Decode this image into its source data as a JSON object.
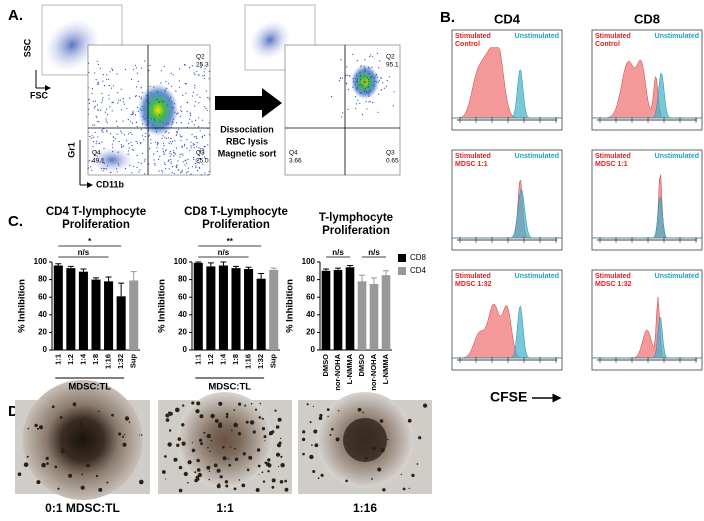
{
  "panel_a": {
    "letter": "A.",
    "axis_labels": {
      "ssc": "SSC",
      "fsc": "FSC",
      "gr1": "Gr1",
      "cd11b": "CD11b"
    },
    "plots": [
      {
        "gates": [
          {
            "name": "Q2",
            "value": "25.3"
          },
          {
            "name": "Q4",
            "value": "49.1"
          },
          {
            "name": "Q3",
            "value": "25.0"
          }
        ]
      },
      {
        "gates": [
          {
            "name": "Q2",
            "value": "95.1"
          },
          {
            "name": "Q4",
            "value": "3.66"
          },
          {
            "name": "Q3",
            "value": "0.65"
          }
        ]
      }
    ],
    "arrow_label": [
      "Dissociation",
      "RBC lysis",
      "Magnetic sort"
    ]
  },
  "panel_b": {
    "letter": "B.",
    "columns": [
      "CD4",
      "CD8"
    ],
    "rows": [
      {
        "stim": [
          "Stimulated",
          "Control"
        ]
      },
      {
        "stim": [
          "Stimulated",
          "MDSC 1:1"
        ]
      },
      {
        "stim": [
          "Stimulated",
          "MDSC 1:32"
        ]
      }
    ],
    "unstim": "Unstimulated",
    "x_label": "CFSE"
  },
  "panel_c_letter": "C.",
  "chart_data": [
    {
      "type": "bar",
      "title": "CD4 T-lymphocyte Proliferation",
      "ylabel": "% Inhibition",
      "xlabel": "MDSC:TL",
      "categories": [
        "1:1",
        "1:2",
        "1:4",
        "1:8",
        "1:16",
        "1:32",
        "Sup"
      ],
      "values": [
        96,
        93,
        89,
        80,
        78,
        61,
        79
      ],
      "errors": [
        2,
        2,
        3,
        2,
        5,
        15,
        10
      ],
      "colors": [
        "#000000",
        "#000000",
        "#000000",
        "#000000",
        "#000000",
        "#000000",
        "#999999"
      ],
      "ylim": [
        0,
        100
      ],
      "yticks": [
        0,
        20,
        40,
        60,
        80,
        100
      ],
      "annotations": [
        {
          "text": "*",
          "from": "1:1",
          "to": "1:32"
        },
        {
          "text": "n/s",
          "from": "1:1",
          "to": "1:16"
        }
      ]
    },
    {
      "type": "bar",
      "title": "CD8 T-Lymphocyte Proliferation",
      "ylabel": "% Inhibition",
      "xlabel": "MDSC:TL",
      "categories": [
        "1:1",
        "1:2",
        "1:4",
        "1:8",
        "1:16",
        "1:32",
        "Sup"
      ],
      "values": [
        99,
        95,
        96,
        93,
        92,
        81,
        91
      ],
      "errors": [
        1,
        4,
        4,
        2,
        2,
        6,
        2
      ],
      "colors": [
        "#000000",
        "#000000",
        "#000000",
        "#000000",
        "#000000",
        "#000000",
        "#999999"
      ],
      "ylim": [
        0,
        100
      ],
      "yticks": [
        0,
        20,
        40,
        60,
        80,
        100
      ],
      "annotations": [
        {
          "text": "**",
          "from": "1:1",
          "to": "1:32"
        },
        {
          "text": "n/s",
          "from": "1:1",
          "to": "1:16"
        }
      ]
    },
    {
      "type": "grouped-bar",
      "title": "T-lymphocyte Proliferation",
      "ylabel": "% Inhibition",
      "categories": [
        "DMSO",
        "nor-NOHA",
        "L-NMMA",
        "DMSO",
        "nor-NOHA",
        "L-NMMA"
      ],
      "series": [
        {
          "name": "CD8",
          "color": "#000000",
          "values": [
            90,
            91,
            94,
            null,
            null,
            null
          ],
          "errors": [
            2,
            2,
            2,
            null,
            null,
            null
          ]
        },
        {
          "name": "CD4",
          "color": "#999999",
          "values": [
            null,
            null,
            null,
            78,
            75,
            85
          ],
          "errors": [
            null,
            null,
            null,
            7,
            7,
            5
          ]
        }
      ],
      "ylim": [
        0,
        100
      ],
      "yticks": [
        0,
        20,
        40,
        60,
        80,
        100
      ],
      "annotations": [
        {
          "text": "n/s",
          "series": "CD8"
        },
        {
          "text": "n/s",
          "series": "CD4"
        }
      ]
    }
  ],
  "panel_d": {
    "letter": "D.",
    "captions": [
      "0:1 MDSC:TL",
      "1:1",
      "1:16"
    ]
  }
}
